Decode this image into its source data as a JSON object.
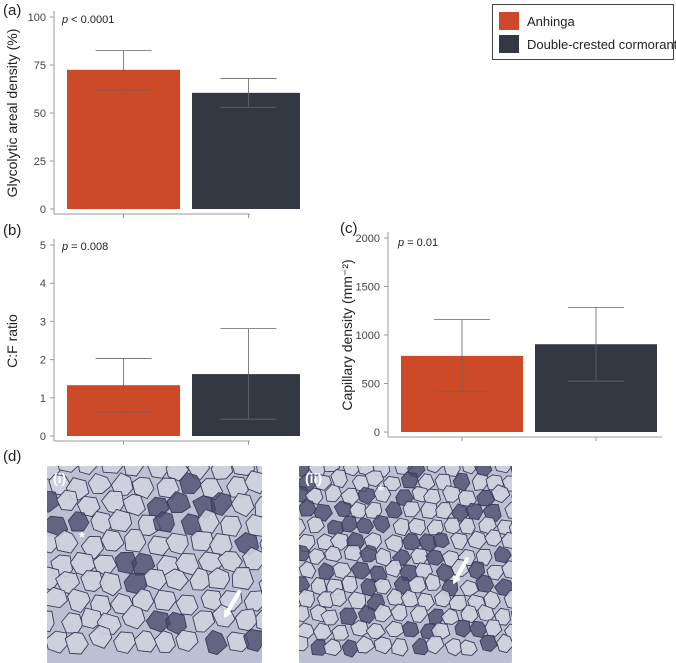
{
  "colors": {
    "anhinga": "#cc4a28",
    "cormorant": "#333843",
    "axis": "#9a9a9a",
    "tissue_bg": "#bcc0d2",
    "fiber_light": "#cfd2de",
    "fiber_dark": "#454567"
  },
  "legend": [
    {
      "name": "Anhinga",
      "color": "#cc4a28"
    },
    {
      "name": "Double-crested cormorant",
      "color": "#333843"
    }
  ],
  "panels": {
    "a": "(a)",
    "b": "(b)",
    "c": "(c)",
    "d": "(d)"
  },
  "chart_data": [
    {
      "id": "a",
      "type": "bar",
      "ylabel": "Glycolytic areal density (%)",
      "annotation": "p < 0.0001",
      "ylim": [
        0,
        100
      ],
      "yticks": [
        0,
        25,
        50,
        75,
        100
      ],
      "series": [
        {
          "name": "Anhinga",
          "value": 72.5,
          "err_low": 62,
          "err_high": 82.5
        },
        {
          "name": "Double-crested cormorant",
          "value": 60.5,
          "err_low": 53,
          "err_high": 68
        }
      ]
    },
    {
      "id": "b",
      "type": "bar",
      "ylabel": "C:F ratio",
      "annotation": "p = 0.008",
      "ylim": [
        0,
        5
      ],
      "yticks": [
        0,
        1,
        2,
        3,
        4,
        5
      ],
      "series": [
        {
          "name": "Anhinga",
          "value": 1.33,
          "err_low": 0.63,
          "err_high": 2.03
        },
        {
          "name": "Double-crested cormorant",
          "value": 1.62,
          "err_low": 0.44,
          "err_high": 2.81
        }
      ]
    },
    {
      "id": "c",
      "type": "bar",
      "ylabel": "Capillary density (mm⁻²)",
      "annotation": "p = 0.01",
      "ylim": [
        0,
        2000
      ],
      "yticks": [
        0,
        500,
        1000,
        1500,
        2000
      ],
      "series": [
        {
          "name": "Anhinga",
          "value": 785,
          "err_low": 415,
          "err_high": 1160
        },
        {
          "name": "Double-crested cormorant",
          "value": 905,
          "err_low": 525,
          "err_high": 1285
        }
      ]
    }
  ],
  "micrographs": [
    {
      "label": "(i)",
      "asterisk": "*"
    },
    {
      "label": "(ii)",
      "asterisk": "*"
    }
  ]
}
